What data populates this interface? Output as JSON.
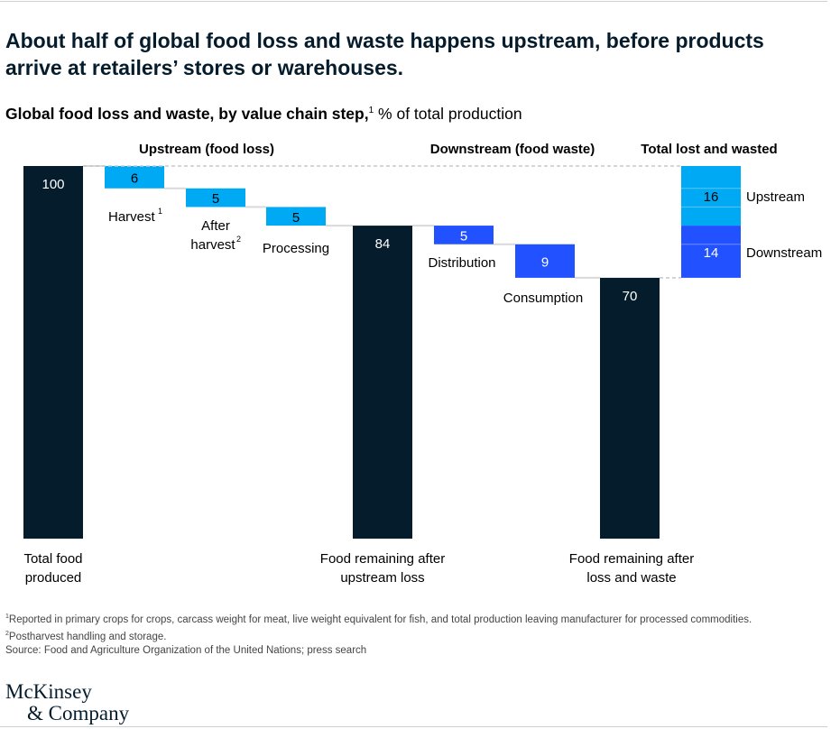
{
  "title": "About half of global food loss and waste happens upstream, before products arrive at retailers’ stores or warehouses.",
  "subtitle": {
    "bold": "Global food loss and waste, by value chain step,",
    "sup": "1",
    "rest": " % of total production"
  },
  "footnotes": [
    {
      "sup": "1",
      "text": "Reported in primary crops for crops, carcass weight for meat, live weight equivalent for fish, and total production leaving manufacturer for processed commodities."
    },
    {
      "sup": "2",
      "text": "Postharvest handling and storage."
    }
  ],
  "source": "Source: Food and Agriculture Organization of the United Nations; press search",
  "logo": {
    "line1": "McKinsey",
    "line2": "& Company"
  },
  "colors": {
    "total": "#051c2c",
    "upstream": "#00a9f4",
    "downstream": "#2251ff",
    "connector": "#d9d9d9"
  },
  "chart_data": {
    "type": "waterfall",
    "unit": "% of total production",
    "group_headers": [
      "Upstream (food loss)",
      "Downstream (food waste)",
      "Total lost and wasted"
    ],
    "steps": [
      {
        "label": "Total food produced",
        "value": 100,
        "kind": "total"
      },
      {
        "label": "Harvest",
        "sup": "1",
        "value": 6,
        "kind": "upstream"
      },
      {
        "label": "After harvest",
        "sup": "2",
        "value": 5,
        "kind": "upstream"
      },
      {
        "label": "Processing",
        "value": 5,
        "kind": "upstream"
      },
      {
        "label": "Food remaining after upstream loss",
        "value": 84,
        "kind": "total"
      },
      {
        "label": "Distribution",
        "value": 5,
        "kind": "downstream"
      },
      {
        "label": "Consumption",
        "value": 9,
        "kind": "downstream"
      },
      {
        "label": "Food remaining after loss and waste",
        "value": 70,
        "kind": "total"
      }
    ],
    "totals": [
      {
        "label": "Upstream",
        "value": 16
      },
      {
        "label": "Downstream",
        "value": 14
      }
    ],
    "ylim": [
      0,
      100
    ]
  }
}
